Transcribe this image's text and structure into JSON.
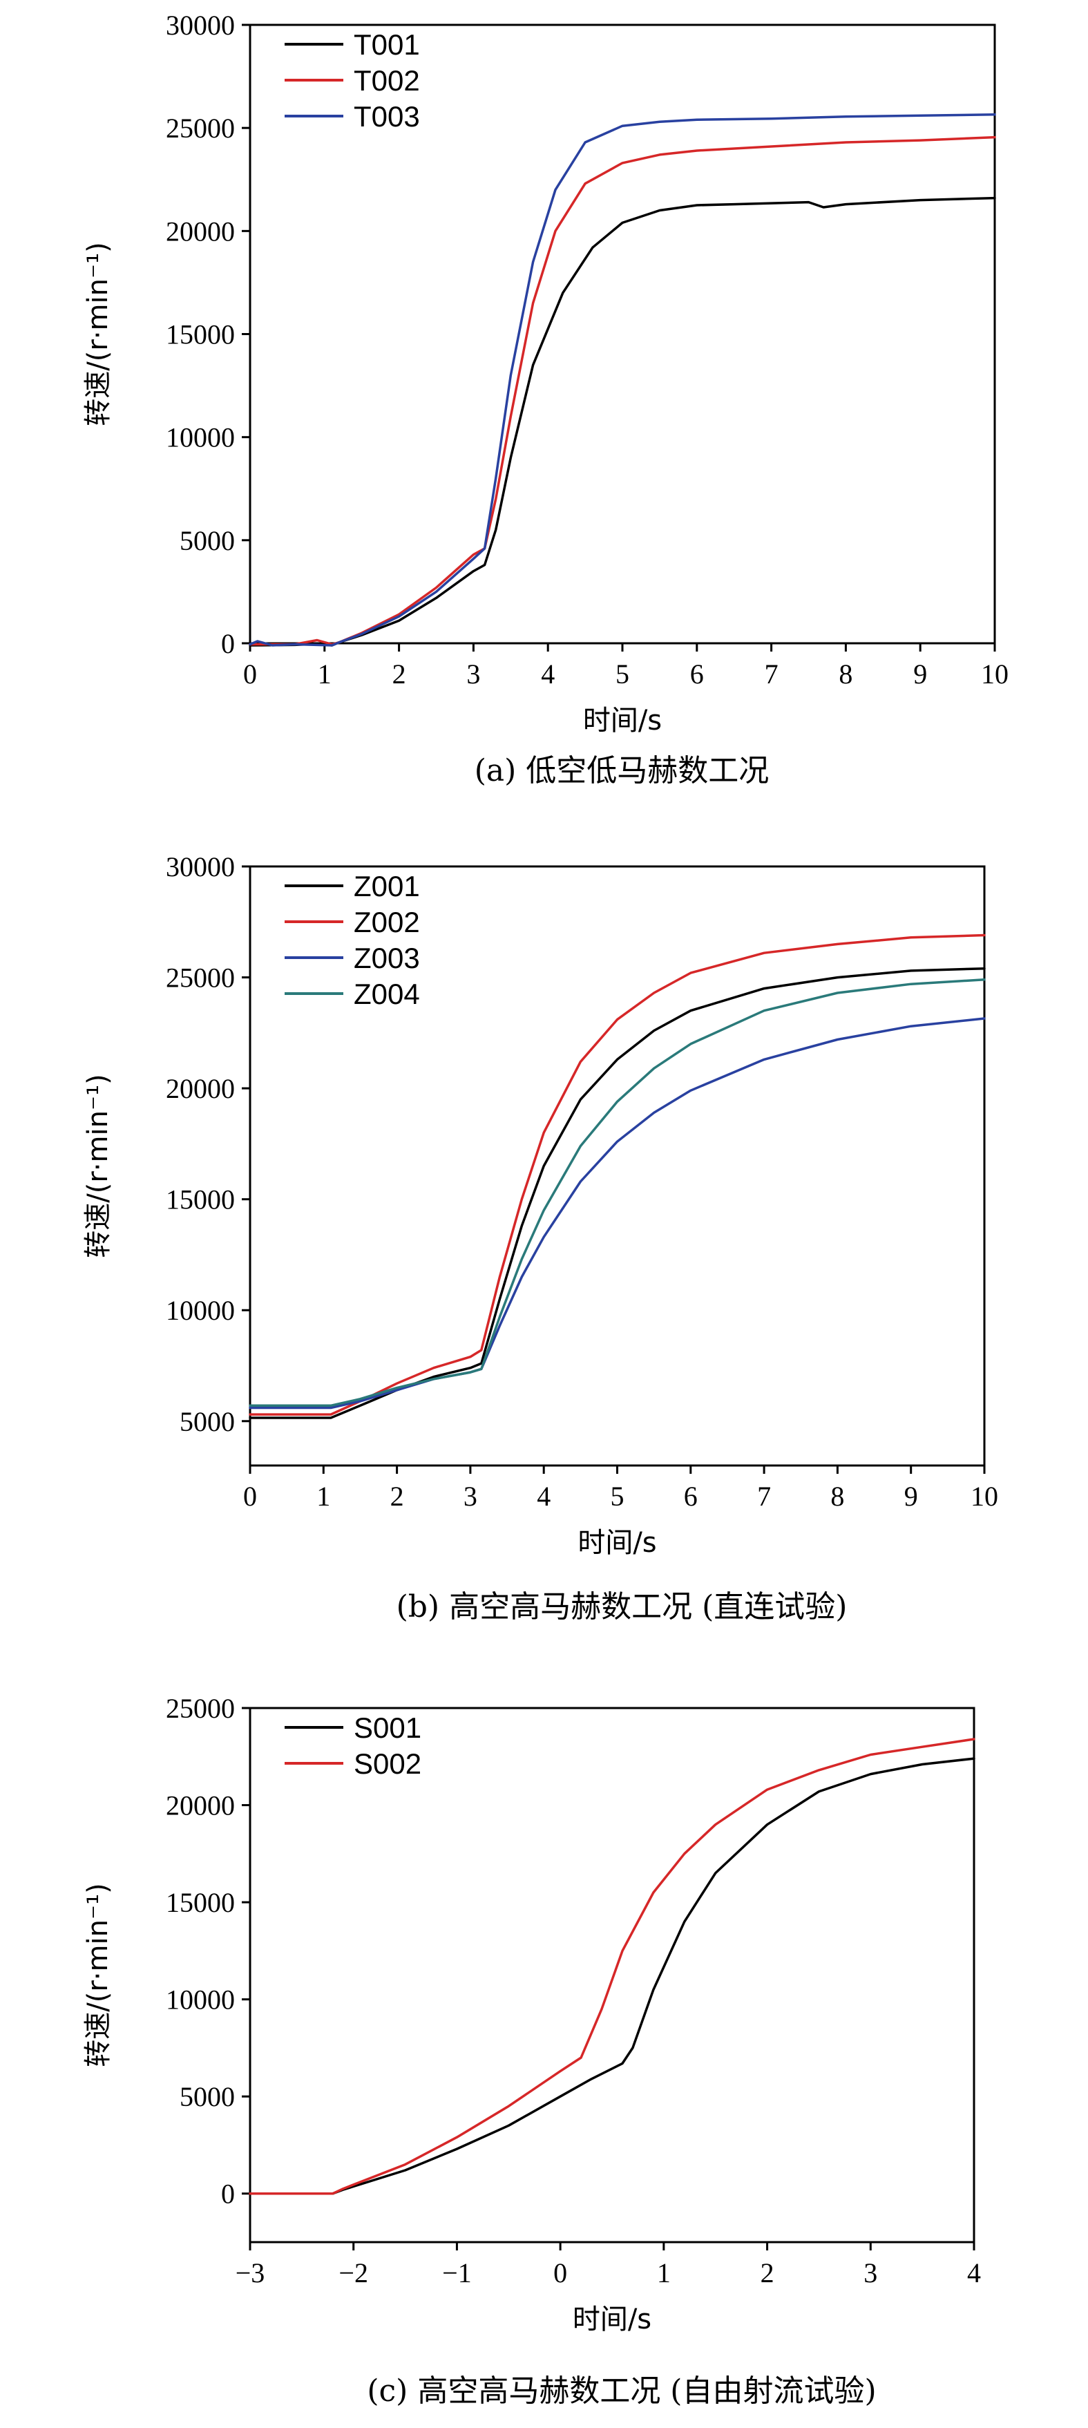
{
  "chart_data": [
    {
      "type": "line",
      "caption": "(a) 低空低马赫数工况",
      "xlabel": "时间/s",
      "ylabel": "转速/(r·min⁻¹)",
      "xlim": [
        0,
        10
      ],
      "ylim": [
        0,
        30000
      ],
      "xticks": [
        "0",
        "1",
        "2",
        "3",
        "4",
        "5",
        "6",
        "7",
        "8",
        "9",
        "10"
      ],
      "yticks": [
        "0",
        "5000",
        "10000",
        "15000",
        "20000",
        "25000",
        "30000"
      ],
      "legend_position": "top-left",
      "grid": false,
      "series": [
        {
          "name": "T001",
          "color": "#000000",
          "points": [
            [
              0,
              -100
            ],
            [
              0.6,
              -80
            ],
            [
              0.9,
              -30
            ],
            [
              1.1,
              -100
            ],
            [
              1.2,
              50
            ],
            [
              1.5,
              400
            ],
            [
              2.0,
              1100
            ],
            [
              2.5,
              2200
            ],
            [
              3.0,
              3500
            ],
            [
              3.15,
              3800
            ],
            [
              3.3,
              5500
            ],
            [
              3.5,
              9000
            ],
            [
              3.8,
              13500
            ],
            [
              4.2,
              17000
            ],
            [
              4.6,
              19200
            ],
            [
              5.0,
              20400
            ],
            [
              5.5,
              21000
            ],
            [
              6.0,
              21250
            ],
            [
              6.5,
              21300
            ],
            [
              7.0,
              21350
            ],
            [
              7.5,
              21400
            ],
            [
              7.7,
              21150
            ],
            [
              8.0,
              21300
            ],
            [
              9.0,
              21500
            ],
            [
              10.0,
              21600
            ]
          ]
        },
        {
          "name": "T002",
          "color": "#d62728",
          "points": [
            [
              0,
              -50
            ],
            [
              0.6,
              -50
            ],
            [
              0.9,
              150
            ],
            [
              1.1,
              -50
            ],
            [
              1.2,
              50
            ],
            [
              1.5,
              500
            ],
            [
              2.0,
              1400
            ],
            [
              2.5,
              2700
            ],
            [
              3.0,
              4300
            ],
            [
              3.15,
              4600
            ],
            [
              3.3,
              7000
            ],
            [
              3.5,
              11000
            ],
            [
              3.8,
              16500
            ],
            [
              4.1,
              20000
            ],
            [
              4.5,
              22300
            ],
            [
              5.0,
              23300
            ],
            [
              5.5,
              23700
            ],
            [
              6.0,
              23900
            ],
            [
              7.0,
              24100
            ],
            [
              8.0,
              24300
            ],
            [
              9.0,
              24400
            ],
            [
              10.0,
              24550
            ]
          ]
        },
        {
          "name": "T003",
          "color": "#2941a0",
          "points": [
            [
              0,
              -50
            ],
            [
              0.1,
              100
            ],
            [
              0.3,
              -100
            ],
            [
              0.6,
              -50
            ],
            [
              1.1,
              -100
            ],
            [
              1.2,
              50
            ],
            [
              1.5,
              450
            ],
            [
              2.0,
              1300
            ],
            [
              2.5,
              2500
            ],
            [
              3.0,
              4100
            ],
            [
              3.15,
              4600
            ],
            [
              3.3,
              8000
            ],
            [
              3.5,
              13000
            ],
            [
              3.8,
              18500
            ],
            [
              4.1,
              22000
            ],
            [
              4.5,
              24300
            ],
            [
              5.0,
              25100
            ],
            [
              5.5,
              25300
            ],
            [
              6.0,
              25400
            ],
            [
              7.0,
              25450
            ],
            [
              8.0,
              25550
            ],
            [
              9.0,
              25600
            ],
            [
              10.0,
              25650
            ]
          ]
        }
      ]
    },
    {
      "type": "line",
      "caption": "(b) 高空高马赫数工况 (直连试验)",
      "xlabel": "时间/s",
      "ylabel": "转速/(r·min⁻¹)",
      "xlim": [
        0,
        10
      ],
      "ylim": [
        3000,
        30000
      ],
      "xticks": [
        "0",
        "1",
        "2",
        "3",
        "4",
        "5",
        "6",
        "7",
        "8",
        "9",
        "10"
      ],
      "yticks": [
        "5000",
        "10000",
        "15000",
        "20000",
        "25000",
        "30000"
      ],
      "legend_position": "top-left",
      "grid": false,
      "series": [
        {
          "name": "Z001",
          "color": "#000000",
          "points": [
            [
              0,
              5150
            ],
            [
              1.1,
              5150
            ],
            [
              1.5,
              5700
            ],
            [
              2.0,
              6400
            ],
            [
              2.5,
              7000
            ],
            [
              3.0,
              7400
            ],
            [
              3.15,
              7600
            ],
            [
              3.4,
              10500
            ],
            [
              3.7,
              13800
            ],
            [
              4.0,
              16500
            ],
            [
              4.5,
              19500
            ],
            [
              5.0,
              21300
            ],
            [
              5.5,
              22600
            ],
            [
              6.0,
              23500
            ],
            [
              7.0,
              24500
            ],
            [
              8.0,
              25000
            ],
            [
              9.0,
              25300
            ],
            [
              10.0,
              25400
            ]
          ]
        },
        {
          "name": "Z002",
          "color": "#d62728",
          "points": [
            [
              0,
              5300
            ],
            [
              1.1,
              5300
            ],
            [
              1.5,
              5900
            ],
            [
              2.0,
              6700
            ],
            [
              2.5,
              7400
            ],
            [
              3.0,
              7900
            ],
            [
              3.15,
              8200
            ],
            [
              3.4,
              11500
            ],
            [
              3.7,
              15000
            ],
            [
              4.0,
              18000
            ],
            [
              4.5,
              21200
            ],
            [
              5.0,
              23100
            ],
            [
              5.5,
              24300
            ],
            [
              6.0,
              25200
            ],
            [
              7.0,
              26100
            ],
            [
              8.0,
              26500
            ],
            [
              9.0,
              26800
            ],
            [
              10.0,
              26900
            ]
          ]
        },
        {
          "name": "Z003",
          "color": "#2941a0",
          "points": [
            [
              0,
              5600
            ],
            [
              1.1,
              5600
            ],
            [
              1.5,
              5900
            ],
            [
              2.0,
              6400
            ],
            [
              2.5,
              6900
            ],
            [
              3.0,
              7200
            ],
            [
              3.15,
              7350
            ],
            [
              3.4,
              9300
            ],
            [
              3.7,
              11500
            ],
            [
              4.0,
              13300
            ],
            [
              4.5,
              15800
            ],
            [
              5.0,
              17600
            ],
            [
              5.5,
              18900
            ],
            [
              6.0,
              19900
            ],
            [
              7.0,
              21300
            ],
            [
              8.0,
              22200
            ],
            [
              9.0,
              22800
            ],
            [
              10.0,
              23150
            ]
          ]
        },
        {
          "name": "Z004",
          "color": "#2a7a7a",
          "points": [
            [
              0,
              5700
            ],
            [
              1.1,
              5700
            ],
            [
              1.5,
              6000
            ],
            [
              2.0,
              6500
            ],
            [
              2.5,
              6900
            ],
            [
              3.0,
              7200
            ],
            [
              3.15,
              7350
            ],
            [
              3.4,
              9700
            ],
            [
              3.7,
              12300
            ],
            [
              4.0,
              14500
            ],
            [
              4.5,
              17400
            ],
            [
              5.0,
              19400
            ],
            [
              5.5,
              20900
            ],
            [
              6.0,
              22000
            ],
            [
              7.0,
              23500
            ],
            [
              8.0,
              24300
            ],
            [
              9.0,
              24700
            ],
            [
              10.0,
              24900
            ]
          ]
        }
      ]
    },
    {
      "type": "line",
      "caption": "(c) 高空高马赫数工况 (自由射流试验)",
      "xlabel": "时间/s",
      "ylabel": "转速/(r·min⁻¹)",
      "xlim": [
        -3,
        4
      ],
      "ylim": [
        -2500,
        25000
      ],
      "xticks": [
        "−3",
        "−2",
        "−1",
        "0",
        "1",
        "2",
        "3",
        "4"
      ],
      "yticks": [
        "0",
        "5000",
        "10000",
        "15000",
        "20000",
        "25000"
      ],
      "legend_position": "top-left",
      "grid": false,
      "series": [
        {
          "name": "S001",
          "color": "#000000",
          "points": [
            [
              -3,
              0
            ],
            [
              -2.2,
              0
            ],
            [
              -2.1,
              200
            ],
            [
              -1.5,
              1200
            ],
            [
              -1.0,
              2300
            ],
            [
              -0.5,
              3500
            ],
            [
              0.0,
              5000
            ],
            [
              0.3,
              5900
            ],
            [
              0.6,
              6700
            ],
            [
              0.7,
              7500
            ],
            [
              0.9,
              10500
            ],
            [
              1.2,
              14000
            ],
            [
              1.5,
              16500
            ],
            [
              2.0,
              19000
            ],
            [
              2.5,
              20700
            ],
            [
              3.0,
              21600
            ],
            [
              3.5,
              22100
            ],
            [
              4.0,
              22400
            ]
          ]
        },
        {
          "name": "S002",
          "color": "#d62728",
          "points": [
            [
              -3,
              0
            ],
            [
              -2.2,
              0
            ],
            [
              -2.1,
              250
            ],
            [
              -1.5,
              1500
            ],
            [
              -1.0,
              2900
            ],
            [
              -0.5,
              4500
            ],
            [
              0.0,
              6300
            ],
            [
              0.2,
              7000
            ],
            [
              0.4,
              9500
            ],
            [
              0.6,
              12500
            ],
            [
              0.9,
              15500
            ],
            [
              1.2,
              17500
            ],
            [
              1.5,
              19000
            ],
            [
              2.0,
              20800
            ],
            [
              2.5,
              21800
            ],
            [
              3.0,
              22600
            ],
            [
              3.5,
              23000
            ],
            [
              4.0,
              23400
            ]
          ]
        }
      ]
    }
  ]
}
